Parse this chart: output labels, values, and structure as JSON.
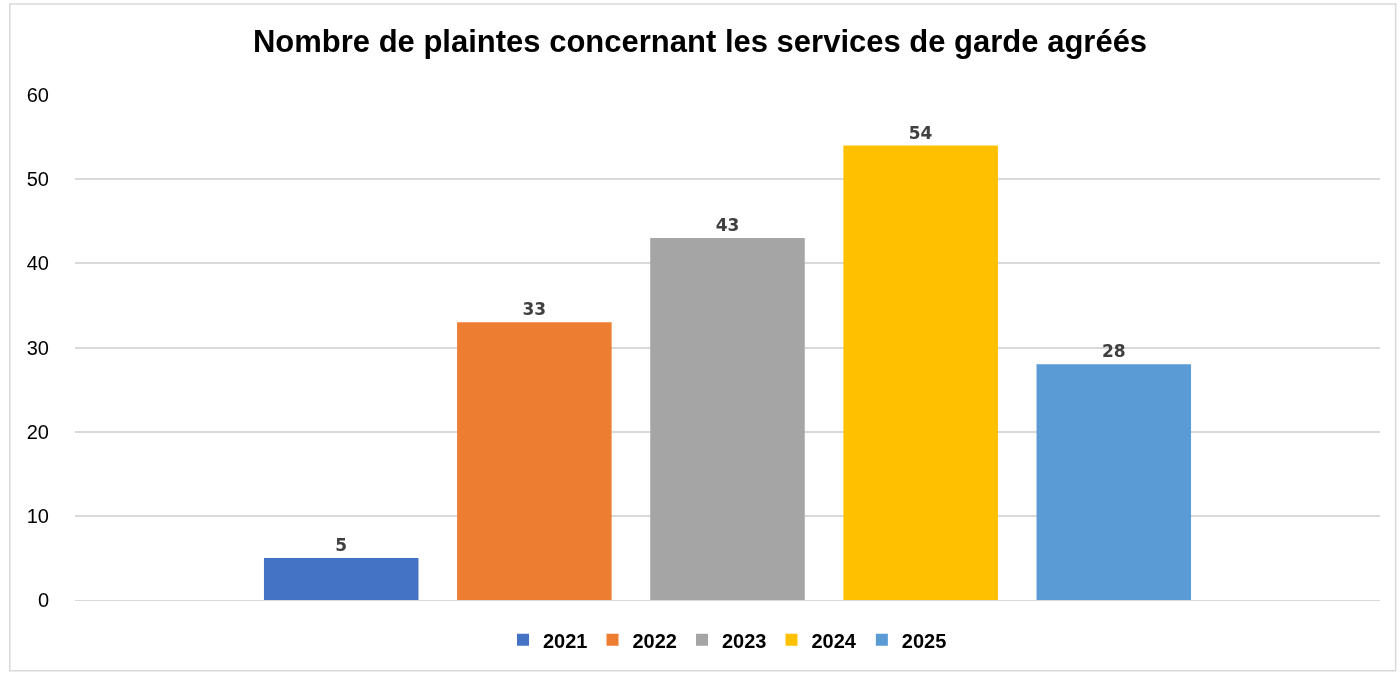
{
  "chart_data": {
    "type": "bar",
    "title": "Nombre de plaintes concernant les services de garde agréés",
    "categories": [
      null
    ],
    "series": [
      {
        "name": "2021",
        "color": "#4472c4",
        "values": [
          5
        ]
      },
      {
        "name": "2022",
        "color": "#ed7d31",
        "values": [
          33
        ]
      },
      {
        "name": "2023",
        "color": "#a5a5a5",
        "values": [
          43
        ]
      },
      {
        "name": "2024",
        "color": "#ffc000",
        "values": [
          54
        ]
      },
      {
        "name": "2025",
        "color": "#5b9bd5",
        "values": [
          28
        ]
      }
    ],
    "ylim": [
      0,
      60
    ],
    "yticks": [
      0,
      10,
      20,
      30,
      40,
      50,
      60
    ],
    "grid": "y",
    "legend": "bottom",
    "data_labels": true
  }
}
